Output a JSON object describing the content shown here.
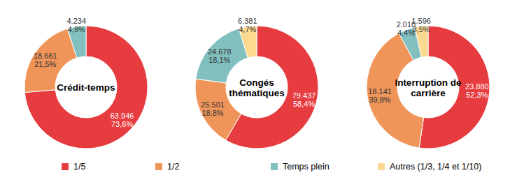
{
  "chart_data": [
    {
      "type": "pie",
      "title": "Crédit-temps",
      "categories": [
        "1/5",
        "1/2",
        "Temps plein"
      ],
      "values": [
        63946,
        18661,
        4234
      ],
      "value_labels": [
        "63.946",
        "18.661",
        "4.234"
      ],
      "shares": [
        73.6,
        21.5,
        4.9
      ],
      "share_labels": [
        "73,6%",
        "21,5%",
        "4,9%"
      ],
      "colors": [
        "#e63b3f",
        "#f0955a",
        "#82c0c0"
      ],
      "data_labels": true,
      "legend": "bottom"
    },
    {
      "type": "pie",
      "title": "Congés thématiques",
      "categories": [
        "1/5",
        "1/2",
        "Temps plein",
        "Autres (1/3, 1/4 et 1/10)"
      ],
      "values": [
        79437,
        25501,
        24678,
        6381
      ],
      "value_labels": [
        "79.437",
        "25.501",
        "24.678",
        "6.381"
      ],
      "shares": [
        58.4,
        18.8,
        18.1,
        4.7
      ],
      "share_labels": [
        "58,4%",
        "18,8%",
        "18,1%",
        "4,7%"
      ],
      "colors": [
        "#e63b3f",
        "#f0955a",
        "#82c0c0",
        "#fbd990"
      ],
      "data_labels": true,
      "legend": "bottom"
    },
    {
      "type": "pie",
      "title": "Interruption de carrière",
      "categories": [
        "1/5",
        "1/2",
        "Temps plein",
        "Autres (1/3, 1/4 et 1/10)"
      ],
      "values": [
        23880,
        18141,
        2010,
        1596
      ],
      "value_labels": [
        "23.880",
        "18.141",
        "2.010",
        "1.596"
      ],
      "shares": [
        52.3,
        39.8,
        4.4,
        3.5
      ],
      "share_labels": [
        "52,3%",
        "39,8%",
        "4,4%",
        "3,5%"
      ],
      "colors": [
        "#e63b3f",
        "#f0955a",
        "#82c0c0",
        "#fbd990"
      ],
      "data_labels": true,
      "legend": "bottom"
    }
  ]
}
